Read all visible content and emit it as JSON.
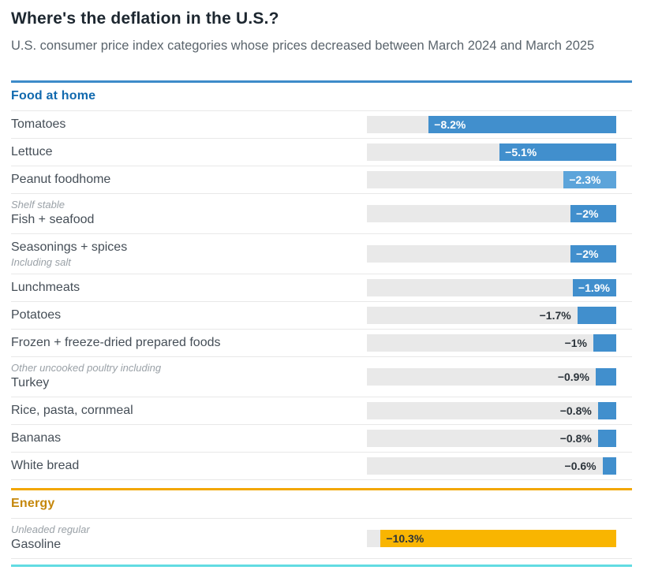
{
  "header": {
    "title": "Where's the deflation in the U.S.?",
    "subtitle": "U.S. consumer price index categories whose prices decreased between March 2024 and March 2025"
  },
  "colors": {
    "title_text": "#1d2730",
    "subtitle_text": "#5a646c",
    "track": "#e9e9e9",
    "divider": "#e8e8e8",
    "value_text_dark": "#2c343b",
    "value_text_light": "#ffffff",
    "next_section_accent": "#62dce2"
  },
  "chart_data": {
    "type": "bar",
    "orientation": "horizontal",
    "unit": "%",
    "value_axis_max_abs": 10.9,
    "title": "Where's the deflation in the U.S.?",
    "subtitle": "U.S. consumer price index categories whose prices decreased between March 2024 and March 2025",
    "sections": [
      {
        "name": "Food at home",
        "accent_color": "#3d8bc9",
        "title_color": "#1169ae",
        "bar_color": "#418fcd",
        "rows": [
          {
            "label": "Tomatoes",
            "value": -8.2,
            "display": "−8.2%",
            "label_placement": "inside",
            "label_tone": "light"
          },
          {
            "label": "Lettuce",
            "value": -5.1,
            "display": "−5.1%",
            "label_placement": "inside",
            "label_tone": "light"
          },
          {
            "label": "Peanut foodhome",
            "value": -2.3,
            "display": "−2.3%",
            "label_placement": "inside",
            "label_tone": "light",
            "bar_color": "#5ca4da"
          },
          {
            "sup": "Shelf stable",
            "label": "Fish + seafood",
            "value": -2,
            "display": "−2%",
            "label_placement": "inside",
            "label_tone": "light"
          },
          {
            "label": "Seasonings + spices",
            "sub": "Including salt",
            "value": -2,
            "display": "−2%",
            "label_placement": "inside",
            "label_tone": "light"
          },
          {
            "label": "Lunchmeats",
            "value": -1.9,
            "display": "−1.9%",
            "label_placement": "inside",
            "label_tone": "light"
          },
          {
            "label": "Potatoes",
            "value": -1.7,
            "display": "−1.7%",
            "label_placement": "outside",
            "label_tone": "dark"
          },
          {
            "label": "Frozen + freeze-dried prepared foods",
            "value": -1,
            "display": "−1%",
            "label_placement": "outside",
            "label_tone": "dark"
          },
          {
            "sup": "Other uncooked poultry including",
            "label": "Turkey",
            "value": -0.9,
            "display": "−0.9%",
            "label_placement": "outside",
            "label_tone": "dark"
          },
          {
            "label": "Rice, pasta, cornmeal",
            "value": -0.8,
            "display": "−0.8%",
            "label_placement": "outside",
            "label_tone": "dark"
          },
          {
            "label": "Bananas",
            "value": -0.8,
            "display": "−0.8%",
            "label_placement": "outside",
            "label_tone": "dark"
          },
          {
            "label": "White bread",
            "value": -0.6,
            "display": "−0.6%",
            "label_placement": "outside",
            "label_tone": "dark"
          }
        ]
      },
      {
        "name": "Energy",
        "accent_color": "#f2a702",
        "title_color": "#c5870b",
        "bar_color": "#f9b501",
        "rows": [
          {
            "sup": "Unleaded regular",
            "label": "Gasoline",
            "value": -10.3,
            "display": "−10.3%",
            "label_placement": "inside",
            "label_tone": "dark"
          }
        ]
      }
    ]
  }
}
